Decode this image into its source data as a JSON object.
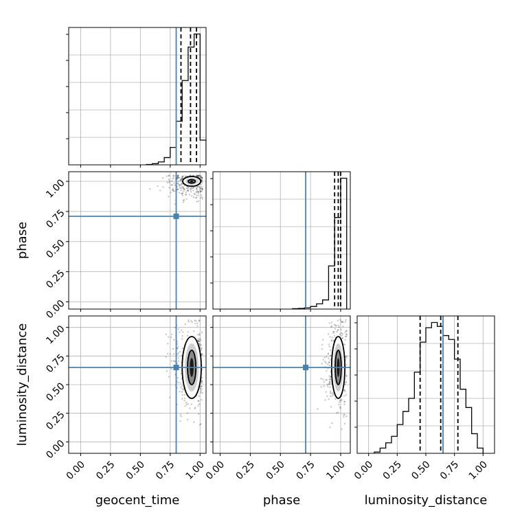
{
  "chart_data": {
    "type": "corner",
    "parameters": [
      "geocent_time",
      "phase",
      "luminosity_distance"
    ],
    "axis_labels": [
      "geocent_time",
      "phase",
      "luminosity_distance"
    ],
    "tick_labels": [
      "0.00",
      "0.25",
      "0.50",
      "0.75",
      "1.00"
    ],
    "tick_values": [
      0.0,
      0.25,
      0.5,
      0.75,
      1.0
    ],
    "ranges": [
      [
        -0.1,
        1.05
      ],
      [
        -0.06,
        1.08
      ],
      [
        -0.1,
        1.1
      ]
    ],
    "truths": [
      0.8,
      0.71,
      0.65
    ],
    "truth_color": "#4682b4",
    "grid": true,
    "marginals": [
      {
        "parameter": "geocent_time",
        "bin_edges": [
          0.55,
          0.6,
          0.65,
          0.7,
          0.75,
          0.8,
          0.85,
          0.9,
          0.95,
          1.0,
          1.05
        ],
        "values": [
          0.002,
          0.008,
          0.02,
          0.05,
          0.12,
          0.3,
          0.58,
          0.81,
          0.9,
          0.17
        ],
        "quantiles": [
          0.84,
          0.92,
          0.97
        ]
      },
      {
        "parameter": "phase",
        "bin_edges": [
          0.6,
          0.65,
          0.7,
          0.75,
          0.8,
          0.85,
          0.9,
          0.95,
          1.0,
          1.05
        ],
        "values": [
          0.003,
          0.005,
          0.01,
          0.02,
          0.04,
          0.07,
          0.33,
          0.7,
          1.0
        ],
        "quantiles": [
          0.95,
          0.98,
          1.0
        ]
      },
      {
        "parameter": "luminosity_distance",
        "bin_edges": [
          0.05,
          0.1,
          0.15,
          0.2,
          0.25,
          0.3,
          0.35,
          0.4,
          0.45,
          0.5,
          0.55,
          0.6,
          0.65,
          0.7,
          0.75,
          0.8,
          0.85,
          0.9,
          0.95,
          1.0
        ],
        "values": [
          0.01,
          0.04,
          0.08,
          0.13,
          0.22,
          0.32,
          0.42,
          0.62,
          0.85,
          0.96,
          1.0,
          0.97,
          0.9,
          0.87,
          0.72,
          0.49,
          0.35,
          0.15,
          0.04
        ],
        "quantiles": [
          0.45,
          0.63,
          0.78
        ]
      }
    ],
    "joints": [
      {
        "x": "geocent_time",
        "y": "phase",
        "center": [
          0.93,
          1.0
        ],
        "spread": [
          0.1,
          0.07
        ],
        "contours": [
          {
            "rx": 0.03,
            "ry": 0.015
          },
          {
            "rx": 0.075,
            "ry": 0.04
          }
        ],
        "n_points": 320
      },
      {
        "x": "geocent_time",
        "y": "luminosity_distance",
        "center": [
          0.93,
          0.65
        ],
        "spread": [
          0.09,
          0.2
        ],
        "contours": [
          {
            "rx": 0.035,
            "ry": 0.15
          },
          {
            "rx": 0.08,
            "ry": 0.27
          }
        ],
        "n_points": 320
      },
      {
        "x": "phase",
        "y": "luminosity_distance",
        "center": [
          0.98,
          0.65
        ],
        "spread": [
          0.06,
          0.2
        ],
        "contours": [
          {
            "rx": 0.025,
            "ry": 0.15
          },
          {
            "rx": 0.055,
            "ry": 0.27
          }
        ],
        "n_points": 320
      }
    ]
  }
}
